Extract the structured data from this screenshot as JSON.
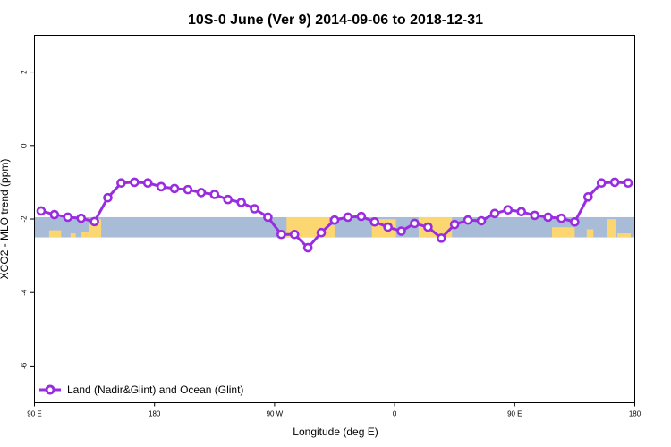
{
  "chart_data": {
    "type": "line",
    "title": "10S-0 June (Ver 9)   2014-09-06 to 2018-12-31",
    "xlabel": "Longitude (deg E)",
    "ylabel": "XCO2 - MLO trend (ppm)",
    "x_tick_labels": [
      "90 E",
      "180",
      "90 W",
      "0",
      "90 E",
      "180"
    ],
    "x_ticks": [
      90,
      180,
      270,
      360,
      450,
      540
    ],
    "xlim": [
      90,
      540
    ],
    "y_ticks": [
      2,
      0,
      -2,
      -4,
      -6
    ],
    "ylim": [
      -7,
      3
    ],
    "grid": false,
    "legend_position": "bottom-left",
    "band": {
      "y_range": [
        -1.95,
        -2.5
      ],
      "ocean_color": "#a8bcd8",
      "land_color": "#fcd670"
    },
    "series": [
      {
        "name": "Land (Nadir&Glint) and Ocean (Glint)",
        "color": "#9a2ce0",
        "x": [
          95,
          105,
          115,
          125,
          135,
          145,
          155,
          165,
          175,
          185,
          195,
          205,
          215,
          225,
          235,
          245,
          255,
          265,
          275,
          285,
          295,
          305,
          315,
          325,
          335,
          345,
          355,
          365,
          375,
          385,
          395,
          405,
          415,
          425,
          435,
          445,
          455,
          465,
          475,
          485,
          495,
          505,
          515,
          525,
          535
        ],
        "y": [
          -1.78,
          -1.88,
          -1.95,
          -1.98,
          -2.07,
          -1.42,
          -1.02,
          -1.0,
          -1.02,
          -1.12,
          -1.17,
          -1.2,
          -1.28,
          -1.33,
          -1.47,
          -1.55,
          -1.72,
          -1.95,
          -2.42,
          -2.42,
          -2.78,
          -2.37,
          -2.03,
          -1.95,
          -1.93,
          -2.08,
          -2.22,
          -2.33,
          -2.12,
          -2.22,
          -2.52,
          -2.15,
          -2.03,
          -2.05,
          -1.85,
          -1.75,
          -1.8,
          -1.9,
          -1.95,
          -1.98,
          -2.08,
          -1.4,
          -1.02,
          -1.0,
          -1.02
        ]
      }
    ]
  }
}
